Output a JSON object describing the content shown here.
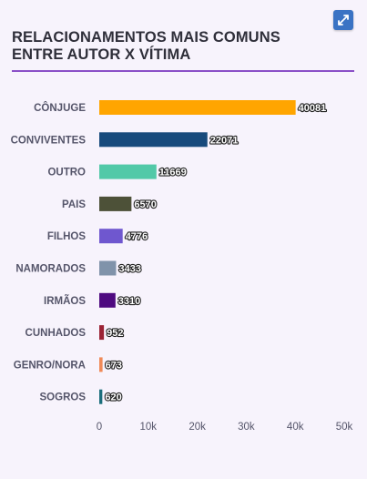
{
  "header": {
    "title": "RELACIONAMENTOS MAIS COMUNS ENTRE AUTOR X VÍTIMA",
    "expand_icon": "expand-icon"
  },
  "colors": {
    "title_rule": "#8a4fc7",
    "expand_button": "#3a73c4"
  },
  "chart_data": {
    "type": "bar",
    "orientation": "horizontal",
    "title": "RELACIONAMENTOS MAIS COMUNS ENTRE AUTOR X VÍTIMA",
    "categories": [
      "CÔNJUGE",
      "CONVIVENTES",
      "OUTRO",
      "PAIS",
      "FILHOS",
      "NAMORADOS",
      "IRMÃOS",
      "CUNHADOS",
      "GENRO/NORA",
      "SOGROS"
    ],
    "values": [
      40081,
      22071,
      11669,
      6570,
      4776,
      3433,
      3310,
      952,
      673,
      620
    ],
    "colors": [
      "#ffa500",
      "#174a7c",
      "#52c9a8",
      "#4d5138",
      "#6f57cf",
      "#8093aa",
      "#4e0a80",
      "#9b2335",
      "#f08a58",
      "#1b6e7c"
    ],
    "xlim": [
      0,
      50000
    ],
    "xticks": [
      0,
      10000,
      20000,
      30000,
      40000,
      50000
    ],
    "xtick_labels": [
      "0",
      "10k",
      "20k",
      "30k",
      "40k",
      "50k"
    ],
    "grid": false,
    "legend": "none"
  }
}
